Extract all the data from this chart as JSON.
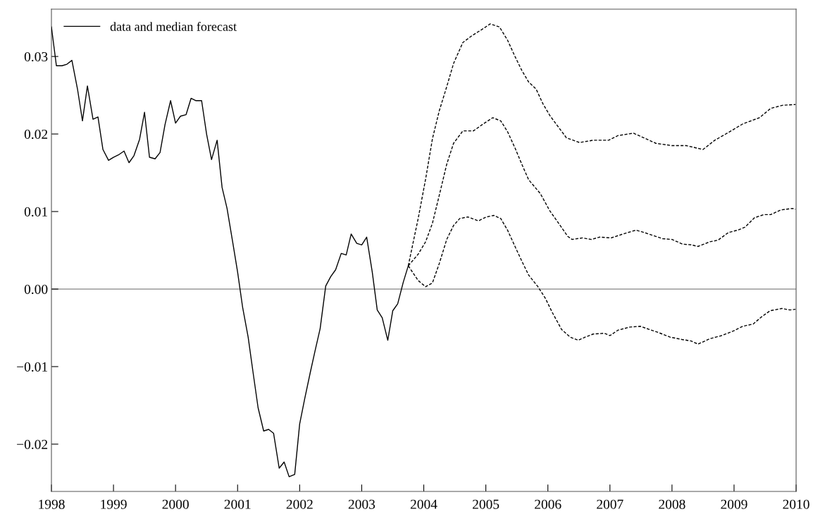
{
  "chart_data": {
    "type": "line",
    "xlim": [
      1998,
      2010
    ],
    "ylim": [
      -0.0261,
      0.0361
    ],
    "xticks": [
      1998,
      1999,
      2000,
      2001,
      2002,
      2003,
      2004,
      2005,
      2006,
      2007,
      2008,
      2009,
      2010
    ],
    "yticks": [
      {
        "value": -0.02,
        "label": "−0.02"
      },
      {
        "value": -0.01,
        "label": "−0.01"
      },
      {
        "value": 0,
        "label": "0.00"
      },
      0.01,
      0.02,
      0.03
    ],
    "grid": false,
    "legend": "top left",
    "marker": "none",
    "ref_lines": [
      {
        "axis": "y",
        "value": 0,
        "color": "#999999"
      }
    ],
    "series": [
      {
        "name": "data and median forecast",
        "color": "#000000",
        "line_style": "solid",
        "x": [
          1998.0,
          1998.08,
          1998.17,
          1998.25,
          1998.33,
          1998.42,
          1998.5,
          1998.58,
          1998.67,
          1998.75,
          1998.83,
          1998.92,
          1999.0,
          1999.08,
          1999.17,
          1999.25,
          1999.33,
          1999.42,
          1999.5,
          1999.58,
          1999.67,
          1999.75,
          1999.83,
          1999.92,
          2000.0,
          2000.08,
          2000.17,
          2000.25,
          2000.33,
          2000.42,
          2000.5,
          2000.58,
          2000.67,
          2000.75,
          2000.83,
          2000.92,
          2001.0,
          2001.08,
          2001.17,
          2001.25,
          2001.33,
          2001.42,
          2001.5,
          2001.58,
          2001.67,
          2001.75,
          2001.83,
          2001.92,
          2002.0,
          2002.08,
          2002.17,
          2002.25,
          2002.33,
          2002.42,
          2002.5,
          2002.58,
          2002.67,
          2002.75,
          2002.83,
          2002.92,
          2003.0,
          2003.08,
          2003.17,
          2003.25,
          2003.33,
          2003.42,
          2003.5,
          2003.58,
          2003.67,
          2003.75
        ],
        "values": [
          0.0338,
          0.0288,
          0.0288,
          0.029,
          0.0295,
          0.0258,
          0.0217,
          0.0262,
          0.0219,
          0.0222,
          0.018,
          0.0166,
          0.017,
          0.0173,
          0.0178,
          0.0163,
          0.0172,
          0.0193,
          0.0228,
          0.017,
          0.0168,
          0.0176,
          0.0212,
          0.0243,
          0.0214,
          0.0223,
          0.0225,
          0.0246,
          0.0243,
          0.0243,
          0.02,
          0.0167,
          0.0192,
          0.0131,
          0.0104,
          0.0061,
          0.0022,
          -0.0023,
          -0.0062,
          -0.0108,
          -0.0153,
          -0.0183,
          -0.0181,
          -0.0186,
          -0.0231,
          -0.0223,
          -0.0242,
          -0.0239,
          -0.0174,
          -0.0142,
          -0.0108,
          -0.0079,
          -0.0051,
          0.0004,
          0.0016,
          0.0025,
          0.0046,
          0.0044,
          0.0071,
          0.0059,
          0.0057,
          0.0067,
          0.0022,
          -0.0027,
          -0.0037,
          -0.0066,
          -0.0028,
          -0.0019,
          0.0009,
          0.003
        ]
      },
      {
        "color": "#000000",
        "line_style": "dashed",
        "x": [
          2003.75,
          2003.91,
          2004.03,
          2004.14,
          2004.25,
          2004.37,
          2004.48,
          2004.63,
          2004.78,
          2004.94,
          2005.07,
          2005.22,
          2005.35,
          2005.47,
          2005.58,
          2005.69,
          2005.81,
          2005.92,
          2006.03,
          2006.15,
          2006.3,
          2006.51,
          2006.73,
          2006.98,
          2007.13,
          2007.38,
          2007.55,
          2007.74,
          2008.0,
          2008.23,
          2008.5,
          2008.69,
          2008.91,
          2009.14,
          2009.41,
          2009.59,
          2009.78,
          2009.99
        ],
        "values": [
          0.003,
          0.0091,
          0.0142,
          0.0194,
          0.023,
          0.0261,
          0.0291,
          0.0318,
          0.0327,
          0.0335,
          0.0342,
          0.0338,
          0.0321,
          0.03,
          0.0282,
          0.0267,
          0.0258,
          0.0239,
          0.0224,
          0.0211,
          0.0195,
          0.0189,
          0.0192,
          0.0192,
          0.0198,
          0.0201,
          0.0195,
          0.0188,
          0.0185,
          0.0185,
          0.018,
          0.0192,
          0.0202,
          0.0213,
          0.0221,
          0.0233,
          0.0237,
          0.0238
        ]
      },
      {
        "color": "#000000",
        "line_style": "dashed",
        "x": [
          2003.75,
          2003.91,
          2004.03,
          2004.14,
          2004.25,
          2004.37,
          2004.48,
          2004.63,
          2004.8,
          2004.94,
          2005.11,
          2005.24,
          2005.35,
          2005.47,
          2005.58,
          2005.69,
          2005.88,
          2006.03,
          2006.19,
          2006.32,
          2006.39,
          2006.56,
          2006.7,
          2006.83,
          2007.02,
          2007.21,
          2007.42,
          2007.55,
          2007.7,
          2007.85,
          2008.0,
          2008.17,
          2008.31,
          2008.42,
          2008.61,
          2008.74,
          2008.91,
          2009.06,
          2009.18,
          2009.33,
          2009.48,
          2009.59,
          2009.75,
          2009.94,
          2009.99
        ],
        "values": [
          0.003,
          0.0045,
          0.0061,
          0.0085,
          0.0121,
          0.0161,
          0.0188,
          0.0204,
          0.0204,
          0.0212,
          0.0221,
          0.0217,
          0.0203,
          0.0182,
          0.0161,
          0.0141,
          0.0123,
          0.0101,
          0.0083,
          0.0068,
          0.0064,
          0.0066,
          0.0064,
          0.0067,
          0.0066,
          0.0071,
          0.0076,
          0.0073,
          0.0069,
          0.0065,
          0.0064,
          0.0058,
          0.0057,
          0.0055,
          0.0061,
          0.0063,
          0.0073,
          0.0076,
          0.008,
          0.0092,
          0.0096,
          0.0096,
          0.0102,
          0.0104,
          0.0103
        ]
      },
      {
        "color": "#000000",
        "line_style": "dashed",
        "x": [
          2003.75,
          2003.91,
          2004.03,
          2004.14,
          2004.25,
          2004.37,
          2004.48,
          2004.58,
          2004.71,
          2004.88,
          2005.01,
          2005.13,
          2005.24,
          2005.35,
          2005.47,
          2005.58,
          2005.69,
          2005.84,
          2005.96,
          2006.07,
          2006.22,
          2006.36,
          2006.49,
          2006.6,
          2006.73,
          2006.91,
          2007.0,
          2007.13,
          2007.32,
          2007.49,
          2007.63,
          2007.78,
          2007.97,
          2008.16,
          2008.31,
          2008.42,
          2008.61,
          2008.8,
          2008.99,
          2009.14,
          2009.31,
          2009.44,
          2009.58,
          2009.77,
          2009.9,
          2009.99
        ],
        "values": [
          0.003,
          0.0011,
          0.0003,
          0.0008,
          0.0033,
          0.0064,
          0.0082,
          0.0091,
          0.0093,
          0.0088,
          0.0093,
          0.0095,
          0.0091,
          0.0076,
          0.0055,
          0.0036,
          0.0018,
          0.0003,
          -0.0012,
          -0.003,
          -0.0052,
          -0.0062,
          -0.0066,
          -0.0062,
          -0.0058,
          -0.0057,
          -0.006,
          -0.0053,
          -0.0049,
          -0.0048,
          -0.0052,
          -0.0056,
          -0.0062,
          -0.0065,
          -0.0067,
          -0.0071,
          -0.0064,
          -0.006,
          -0.0054,
          -0.0048,
          -0.0045,
          -0.0036,
          -0.0028,
          -0.0025,
          -0.0027,
          -0.0026
        ]
      }
    ]
  }
}
